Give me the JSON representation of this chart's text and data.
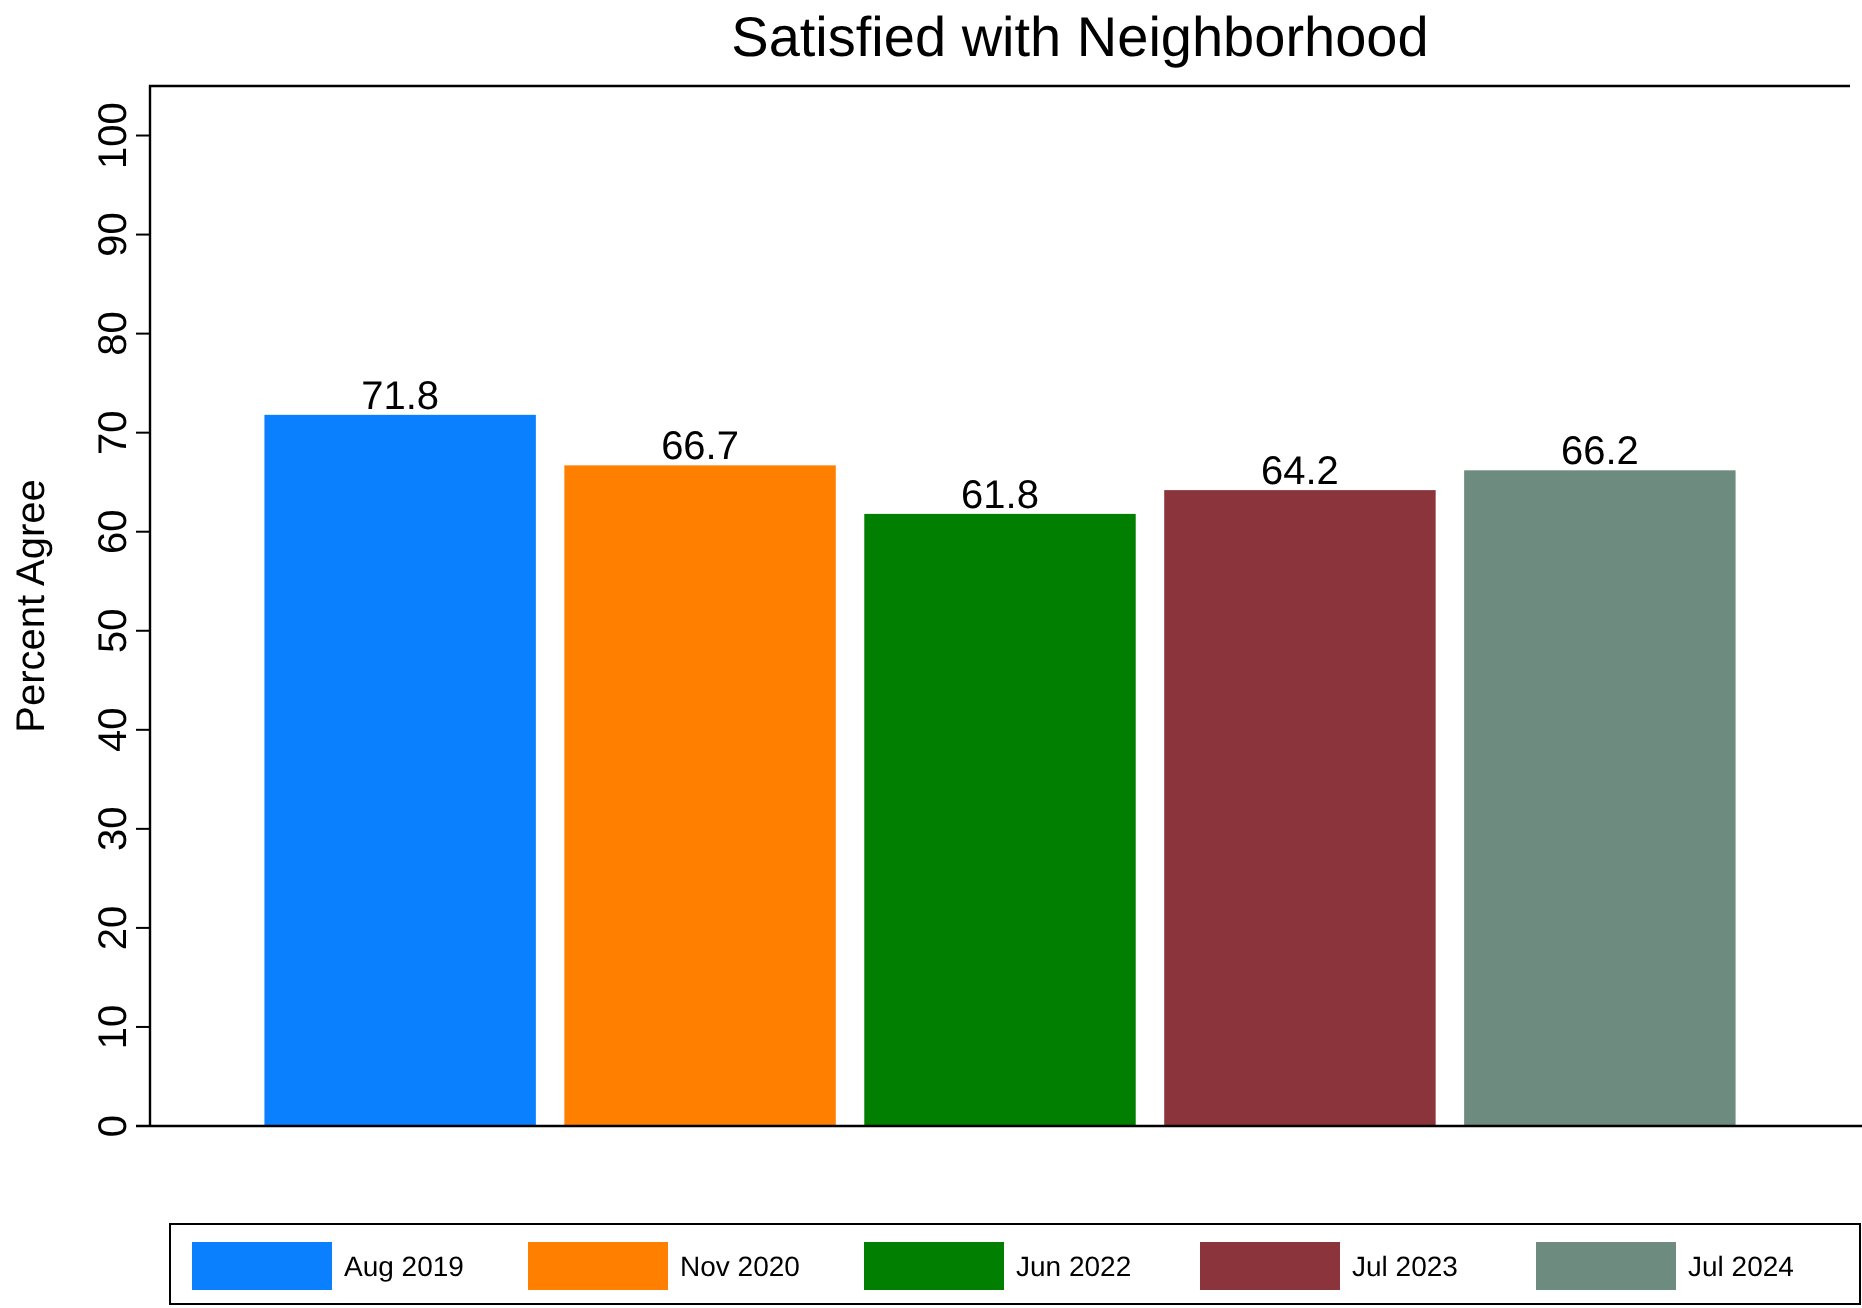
{
  "chart_data": {
    "type": "bar",
    "title": "Satisfied with Neighborhood",
    "ylabel": "Percent Agree",
    "categories": [
      null
    ],
    "series": [
      {
        "name": "Aug 2019",
        "color": "#0a80ff",
        "values": [
          71.8
        ]
      },
      {
        "name": "Nov 2020",
        "color": "#ff7f00",
        "values": [
          66.7
        ]
      },
      {
        "name": "Jun 2022",
        "color": "#007f00",
        "values": [
          61.8
        ]
      },
      {
        "name": "Jul 2023",
        "color": "#8c343c",
        "values": [
          64.2
        ]
      },
      {
        "name": "Jul 2024",
        "color": "#6d8b7f",
        "values": [
          66.2
        ]
      }
    ],
    "ylim": [
      0,
      105
    ],
    "yticks": [
      0,
      10,
      20,
      30,
      40,
      50,
      60,
      70,
      80,
      90,
      100
    ],
    "grid": false,
    "legend": "bottom",
    "data_labels": true
  }
}
